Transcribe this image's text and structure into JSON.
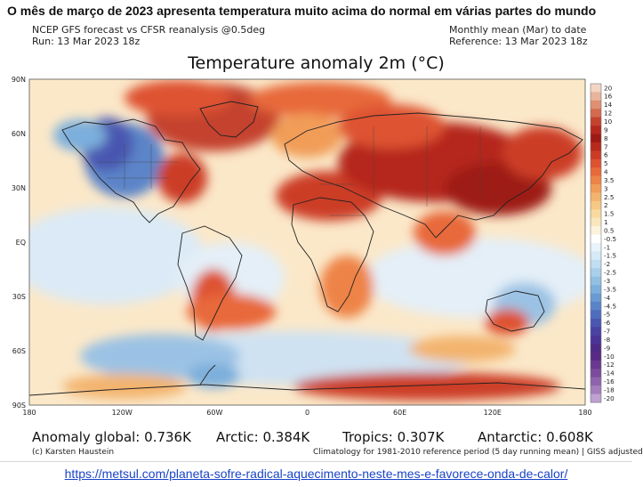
{
  "headline": "O mês de março de 2023 apresenta temperatura muito acima do normal em várias partes do mundo",
  "header_left": [
    "NCEP GFS forecast vs CFSR reanalysis @0.5deg",
    "Run: 13 Mar 2023 18z"
  ],
  "header_right": [
    "Monthly mean (Mar) to date",
    "Reference: 13 Mar 2023 18z"
  ],
  "map": {
    "title": "Temperature anomaly 2m (°C)",
    "lat_labels": [
      "90N",
      "60N",
      "30N",
      "EQ",
      "30S",
      "60S",
      "90S"
    ],
    "lon_labels": [
      "180",
      "120W",
      "60W",
      "0",
      "60E",
      "120E",
      "180"
    ],
    "colorbar": {
      "labels": [
        "20",
        "16",
        "14",
        "12",
        "10",
        "9",
        "8",
        "7",
        "6",
        "5",
        "4",
        "3.5",
        "3",
        "2.5",
        "2",
        "1.5",
        "1",
        "0.5",
        "-0.5",
        "-1",
        "-1.5",
        "-2",
        "-2.5",
        "-3",
        "-3.5",
        "-4",
        "-4.5",
        "-5",
        "-6",
        "-7",
        "-8",
        "-9",
        "-10",
        "-12",
        "-14",
        "-16",
        "-18",
        "-20"
      ],
      "colors": [
        "#f2d5c4",
        "#e8b49c",
        "#de9070",
        "#d46a4e",
        "#c4432e",
        "#b5281d",
        "#9e1a14",
        "#b82a1c",
        "#cc3c25",
        "#de5230",
        "#e8693a",
        "#ee8347",
        "#f19d58",
        "#f3b46e",
        "#f6c886",
        "#f8d9a0",
        "#fae6bd",
        "#fdf3dc",
        "#ffffff",
        "#e9f3fb",
        "#d6e9f6",
        "#c1ddf1",
        "#a9cfeb",
        "#92c0e3",
        "#7cafdb",
        "#6a9ad2",
        "#5b84c8",
        "#4f6dbd",
        "#4a56b0",
        "#4942a3",
        "#4a3496",
        "#4e2a88",
        "#592a84",
        "#6a3890",
        "#7b4c9c",
        "#8f64ac",
        "#a47ebd",
        "#bea0d1"
      ]
    }
  },
  "stats": [
    {
      "label": "Anomaly global:",
      "value": "0.736K"
    },
    {
      "label": "Arctic:",
      "value": "0.384K"
    },
    {
      "label": "Tropics:",
      "value": "0.307K"
    },
    {
      "label": "Antarctic:",
      "value": "0.608K"
    }
  ],
  "credit": "(c) Karsten Haustein",
  "climatology": "Climatology for 1981-2010 reference period (5 day running mean) | GISS adjusted",
  "source_url": "https://metsul.com/planeta-sofre-radical-aquecimento-neste-mes-e-favorece-onda-de-calor/",
  "colors": {
    "warm": "#cc3c25",
    "cold": "#4f6dbd",
    "neutral": "#fdf3dc",
    "link": "#1a44c7"
  }
}
